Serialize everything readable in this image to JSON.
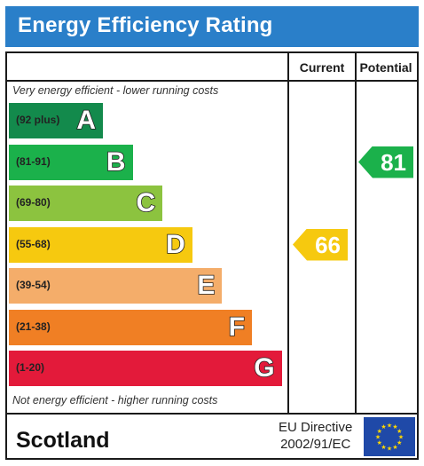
{
  "header": {
    "title": "Energy Efficiency Rating"
  },
  "columns": {
    "current": "Current",
    "potential": "Potential"
  },
  "notes": {
    "top": "Very energy efficient - lower running costs",
    "bottom": "Not energy efficient - higher running costs"
  },
  "chart_data": {
    "type": "bar",
    "title": "Energy Efficiency Rating",
    "bands": [
      {
        "range": "(92 plus)",
        "letter": "A",
        "color": "#138a4c"
      },
      {
        "range": "(81-91)",
        "letter": "B",
        "color": "#1bb14b"
      },
      {
        "range": "(69-80)",
        "letter": "C",
        "color": "#8cc33f"
      },
      {
        "range": "(55-68)",
        "letter": "D",
        "color": "#f6c90f"
      },
      {
        "range": "(39-54)",
        "letter": "E",
        "color": "#f4ad6a"
      },
      {
        "range": "(21-38)",
        "letter": "F",
        "color": "#f07f24"
      },
      {
        "range": "(1-20)",
        "letter": "G",
        "color": "#e31a3a"
      }
    ],
    "current": {
      "value": 66,
      "band": "D",
      "color": "#f6c90f"
    },
    "potential": {
      "value": 81,
      "band": "B",
      "color": "#1bb14b"
    }
  },
  "footer": {
    "region": "Scotland",
    "directive_line1": "EU Directive",
    "directive_line2": "2002/91/EC"
  },
  "colors": {
    "header": "#2a7fc9",
    "flag": "#1f49a8",
    "stars": "#ffd700"
  },
  "icons": {
    "flag": "eu-flag-icon"
  }
}
